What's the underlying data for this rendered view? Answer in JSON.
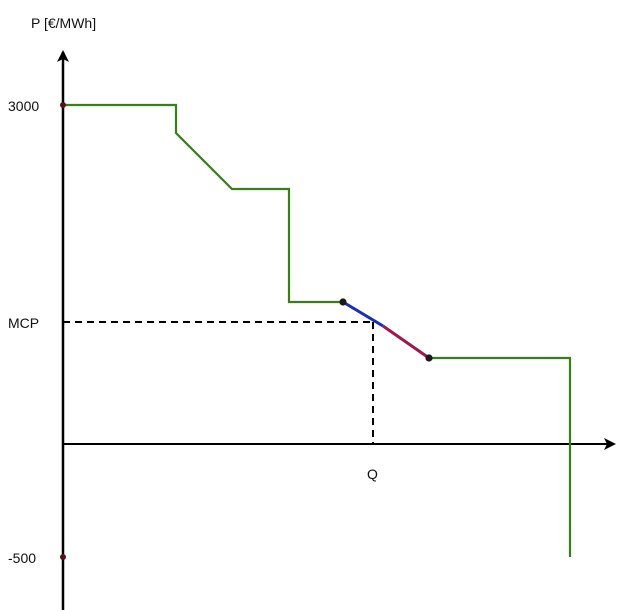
{
  "labels": {
    "y_axis": "P [€/MWh]",
    "tick_high": "3000",
    "tick_low": "-500",
    "mcp": "MCP",
    "q": "Q"
  },
  "colors": {
    "axis": "#000000",
    "curve": "#3a7d1e",
    "segment_left": "#1a2fb8",
    "segment_right": "#a0174d",
    "dashed": "#000000",
    "point": "#1a1a1a",
    "tick_dot": "#5a0f1a"
  }
}
